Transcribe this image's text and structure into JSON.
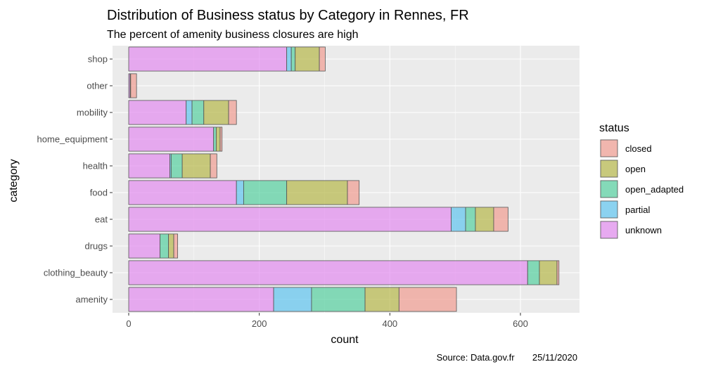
{
  "chart_data": {
    "type": "bar",
    "orientation": "horizontal",
    "stacked": true,
    "title": "Distribution of Business status by Category in Rennes, FR",
    "subtitle": "The percent of amenity business closures are high",
    "xlabel": "count",
    "ylabel": "category",
    "caption": "Source: Data.gov.fr       25/11/2020",
    "xlim": [
      0,
      660
    ],
    "xticks": [
      0,
      200,
      400,
      600
    ],
    "grid": true,
    "legend_title": "status",
    "legend_position": "right",
    "categories": [
      "amenity",
      "clothing_beauty",
      "drugs",
      "eat",
      "food",
      "health",
      "home_equipment",
      "mobility",
      "other",
      "shop"
    ],
    "series": [
      {
        "name": "unknown",
        "color": "#e38cf0",
        "values": [
          222,
          611,
          48,
          494,
          165,
          63,
          130,
          88,
          2,
          242
        ]
      },
      {
        "name": "partial",
        "color": "#5fc4f0",
        "values": [
          58,
          0,
          0,
          22,
          11,
          2,
          0,
          9,
          0,
          7
        ]
      },
      {
        "name": "open_adapted",
        "color": "#55d0a0",
        "values": [
          82,
          18,
          13,
          15,
          66,
          17,
          4,
          18,
          0,
          6
        ]
      },
      {
        "name": "open",
        "color": "#b6b84a",
        "values": [
          52,
          27,
          8,
          28,
          93,
          43,
          6,
          38,
          1,
          37
        ]
      },
      {
        "name": "closed",
        "color": "#f19c92",
        "values": [
          88,
          3,
          6,
          22,
          18,
          10,
          3,
          12,
          9,
          9
        ]
      }
    ],
    "legend_order": [
      "closed",
      "open",
      "open_adapted",
      "partial",
      "unknown"
    ]
  }
}
